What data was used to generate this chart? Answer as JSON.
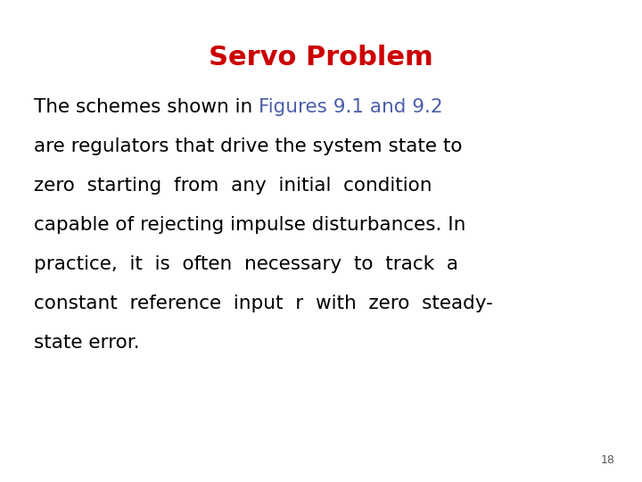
{
  "title": "Servo Problem",
  "title_color": "#cc0000",
  "title_fontsize": 22,
  "title_bold": true,
  "prefix_text": "The schemes shown in ",
  "highlight_text": "Figures 9.1 and 9.2",
  "highlight_color": "#4b5eaa",
  "body_line1_black": "The schemes shown in                    ",
  "body_rest": "are regulators that drive the system state to\nzero  starting  from  any  initial  condition\ncapable of rejecting impulse disturbances. In\npractice,  it  is  often  necessary  to  track  a\nconstant  reference  input  r  with  zero  steady-\nstate error.",
  "page_number": "18",
  "background_color": "#ffffff",
  "body_fontsize": 15.5,
  "figsize": [
    7.2,
    5.4
  ],
  "dpi": 100
}
